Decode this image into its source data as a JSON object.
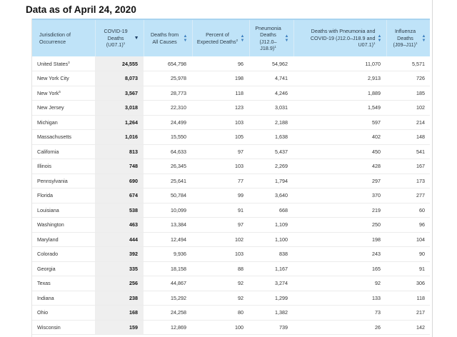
{
  "heading": "Data as of April 24, 2020",
  "columns": {
    "jurisdiction": "Jurisdiction of Occurrence",
    "covid": "COVID-19 Deaths (U07.1)",
    "covid_sup": "1",
    "all_causes": "Deaths from All Causes",
    "percent": "Percent of Expected Deaths",
    "percent_sup": "2",
    "pneumonia": "Pneumonia Deaths (J12.0–J18.9)",
    "pneumonia_sup": "1",
    "pneumonia_covid": "Deaths with Pneumonia and COVID-19 (J12.0–J18.9 and U07.1)",
    "pneumonia_covid_sup": "1",
    "influenza": "Influenza Deaths (J09–J11)",
    "influenza_sup": "1"
  },
  "icons": {
    "sort": "sort-icon",
    "sort_active": "sort-descending-icon"
  },
  "colors": {
    "header_bg": "#bfe3f8",
    "sort_icon": "#3d7fbf",
    "highlight_col": "#efefef"
  },
  "rows": [
    {
      "jurisdiction": "United States",
      "sup": "3",
      "covid": "24,555",
      "all_causes": "654,798",
      "percent": "96",
      "pneumonia": "54,962",
      "pneumonia_covid": "11,070",
      "influenza": "5,571"
    },
    {
      "jurisdiction": "New York City",
      "sup": "",
      "covid": "8,073",
      "all_causes": "25,978",
      "percent": "198",
      "pneumonia": "4,741",
      "pneumonia_covid": "2,913",
      "influenza": "726"
    },
    {
      "jurisdiction": "New York",
      "sup": "5",
      "covid": "3,567",
      "all_causes": "28,773",
      "percent": "118",
      "pneumonia": "4,246",
      "pneumonia_covid": "1,889",
      "influenza": "185"
    },
    {
      "jurisdiction": "New Jersey",
      "sup": "",
      "covid": "3,018",
      "all_causes": "22,310",
      "percent": "123",
      "pneumonia": "3,031",
      "pneumonia_covid": "1,549",
      "influenza": "102"
    },
    {
      "jurisdiction": "Michigan",
      "sup": "",
      "covid": "1,264",
      "all_causes": "24,499",
      "percent": "103",
      "pneumonia": "2,188",
      "pneumonia_covid": "597",
      "influenza": "214"
    },
    {
      "jurisdiction": "Massachusetts",
      "sup": "",
      "covid": "1,016",
      "all_causes": "15,550",
      "percent": "105",
      "pneumonia": "1,638",
      "pneumonia_covid": "402",
      "influenza": "148"
    },
    {
      "jurisdiction": "California",
      "sup": "",
      "covid": "813",
      "all_causes": "64,633",
      "percent": "97",
      "pneumonia": "5,437",
      "pneumonia_covid": "450",
      "influenza": "541"
    },
    {
      "jurisdiction": "Illinois",
      "sup": "",
      "covid": "748",
      "all_causes": "26,345",
      "percent": "103",
      "pneumonia": "2,269",
      "pneumonia_covid": "428",
      "influenza": "167"
    },
    {
      "jurisdiction": "Pennsylvania",
      "sup": "",
      "covid": "690",
      "all_causes": "25,641",
      "percent": "77",
      "pneumonia": "1,794",
      "pneumonia_covid": "297",
      "influenza": "173"
    },
    {
      "jurisdiction": "Florida",
      "sup": "",
      "covid": "674",
      "all_causes": "50,784",
      "percent": "99",
      "pneumonia": "3,640",
      "pneumonia_covid": "370",
      "influenza": "277"
    },
    {
      "jurisdiction": "Louisiana",
      "sup": "",
      "covid": "538",
      "all_causes": "10,099",
      "percent": "91",
      "pneumonia": "668",
      "pneumonia_covid": "219",
      "influenza": "60"
    },
    {
      "jurisdiction": "Washington",
      "sup": "",
      "covid": "463",
      "all_causes": "13,384",
      "percent": "97",
      "pneumonia": "1,109",
      "pneumonia_covid": "250",
      "influenza": "96"
    },
    {
      "jurisdiction": "Maryland",
      "sup": "",
      "covid": "444",
      "all_causes": "12,494",
      "percent": "102",
      "pneumonia": "1,100",
      "pneumonia_covid": "198",
      "influenza": "104"
    },
    {
      "jurisdiction": "Colorado",
      "sup": "",
      "covid": "392",
      "all_causes": "9,936",
      "percent": "103",
      "pneumonia": "838",
      "pneumonia_covid": "243",
      "influenza": "90"
    },
    {
      "jurisdiction": "Georgia",
      "sup": "",
      "covid": "335",
      "all_causes": "18,158",
      "percent": "88",
      "pneumonia": "1,167",
      "pneumonia_covid": "165",
      "influenza": "91"
    },
    {
      "jurisdiction": "Texas",
      "sup": "",
      "covid": "256",
      "all_causes": "44,867",
      "percent": "92",
      "pneumonia": "3,274",
      "pneumonia_covid": "92",
      "influenza": "306"
    },
    {
      "jurisdiction": "Indiana",
      "sup": "",
      "covid": "238",
      "all_causes": "15,292",
      "percent": "92",
      "pneumonia": "1,299",
      "pneumonia_covid": "133",
      "influenza": "118"
    },
    {
      "jurisdiction": "Ohio",
      "sup": "",
      "covid": "168",
      "all_causes": "24,258",
      "percent": "80",
      "pneumonia": "1,382",
      "pneumonia_covid": "73",
      "influenza": "217"
    },
    {
      "jurisdiction": "Wisconsin",
      "sup": "",
      "covid": "159",
      "all_causes": "12,869",
      "percent": "100",
      "pneumonia": "739",
      "pneumonia_covid": "26",
      "influenza": "142"
    }
  ]
}
